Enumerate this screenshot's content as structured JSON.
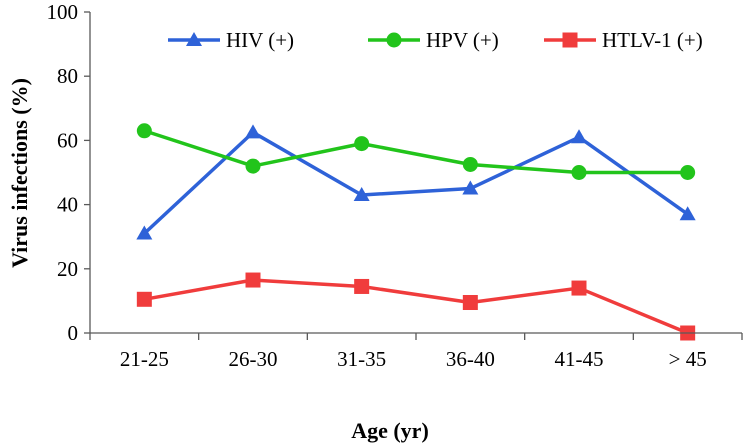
{
  "chart_data": {
    "type": "line",
    "title": "",
    "xlabel": "Age (yr)",
    "ylabel": "Virus infections (%)",
    "ylim": [
      0,
      100
    ],
    "yticks": [
      "0",
      "20",
      "40",
      "60",
      "80",
      "100"
    ],
    "categories": [
      "21-25",
      "26-30",
      "31-35",
      "36-40",
      "41-45",
      "> 45"
    ],
    "grid": false,
    "legend_position": "top",
    "series": [
      {
        "name": "HIV (+)",
        "marker": "triangle",
        "color": "#2e62d8",
        "values": [
          31,
          62.5,
          43,
          45,
          61,
          37
        ]
      },
      {
        "name": "HPV (+)",
        "marker": "circle",
        "color": "#22c41b",
        "values": [
          63,
          52,
          59,
          52.5,
          50,
          50
        ]
      },
      {
        "name": "HTLV-1 (+)",
        "marker": "square",
        "color": "#f03c3c",
        "values": [
          10.5,
          16.5,
          14.5,
          9.5,
          14,
          0
        ]
      }
    ]
  }
}
